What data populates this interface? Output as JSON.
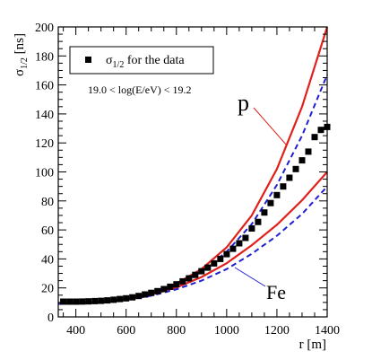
{
  "chart_data": {
    "type": "scatter",
    "xlabel": "r [m]",
    "ylabel": "σ1/2 [ns]",
    "xlim": [
      330,
      1400
    ],
    "ylim": [
      0,
      200
    ],
    "x_ticks": [
      400,
      600,
      800,
      1000,
      1200,
      1400
    ],
    "y_ticks": [
      0,
      20,
      40,
      60,
      80,
      100,
      120,
      140,
      160,
      180,
      200
    ],
    "grid": false,
    "legend": {
      "marker_label": "σ1/2 for the data",
      "cut_label": "19.0 < log(E/eV) < 19.2",
      "placement": "top-left"
    },
    "annotations": [
      {
        "text": "p",
        "color": "#e0201b"
      },
      {
        "text": "Fe",
        "color": "#2020d0"
      }
    ],
    "series": [
      {
        "kind": "scatter",
        "marker": "square",
        "color": "#000000",
        "x": [
          350,
          375,
          400,
          425,
          450,
          475,
          500,
          525,
          550,
          575,
          600,
          625,
          650,
          675,
          700,
          725,
          750,
          775,
          800,
          825,
          850,
          875,
          900,
          925,
          950,
          975,
          1000,
          1025,
          1050,
          1075,
          1100,
          1125,
          1150,
          1175,
          1200,
          1225,
          1250,
          1275,
          1300,
          1325,
          1350,
          1375,
          1400
        ],
        "y": [
          10.5,
          10.5,
          10.5,
          10.6,
          10.7,
          10.9,
          11.1,
          11.4,
          11.8,
          12.3,
          12.8,
          13.5,
          14.4,
          15.5,
          16.6,
          17.8,
          19.2,
          20.8,
          22.5,
          24.5,
          26.6,
          29,
          31.5,
          34,
          36.9,
          40,
          43.3,
          47,
          50.8,
          54.5,
          61,
          65.5,
          72,
          78.5,
          84,
          90,
          96,
          102,
          108,
          114,
          124,
          129,
          131
        ]
      },
      {
        "kind": "line",
        "style": "solid",
        "color": "#e0201b",
        "x": [
          330,
          400,
          500,
          600,
          700,
          800,
          900,
          1000,
          1100,
          1200,
          1300,
          1400
        ],
        "y": [
          9.2,
          9.5,
          10.5,
          12.5,
          16.5,
          23,
          33,
          48,
          70,
          102,
          145,
          200
        ]
      },
      {
        "kind": "line",
        "style": "dashed",
        "color": "#2020d0",
        "x": [
          330,
          400,
          500,
          600,
          700,
          800,
          900,
          1000,
          1100,
          1200,
          1300,
          1400
        ],
        "y": [
          9.2,
          9.5,
          10.4,
          12.3,
          16,
          22,
          31,
          45,
          64,
          91,
          125,
          167
        ]
      },
      {
        "kind": "line",
        "style": "solid",
        "color": "#e0201b",
        "x": [
          330,
          400,
          500,
          600,
          700,
          800,
          900,
          1000,
          1100,
          1200,
          1300,
          1400
        ],
        "y": [
          9,
          9.3,
          10.2,
          12,
          15.3,
          20.3,
          27.5,
          37,
          49.5,
          63.5,
          80.5,
          100
        ]
      },
      {
        "kind": "line",
        "style": "dashed",
        "color": "#2020d0",
        "x": [
          330,
          400,
          500,
          600,
          700,
          800,
          900,
          1000,
          1100,
          1200,
          1300,
          1400
        ],
        "y": [
          9,
          9.2,
          10,
          11.7,
          14.6,
          19,
          25,
          33,
          43.5,
          56,
          71,
          90
        ]
      }
    ]
  }
}
